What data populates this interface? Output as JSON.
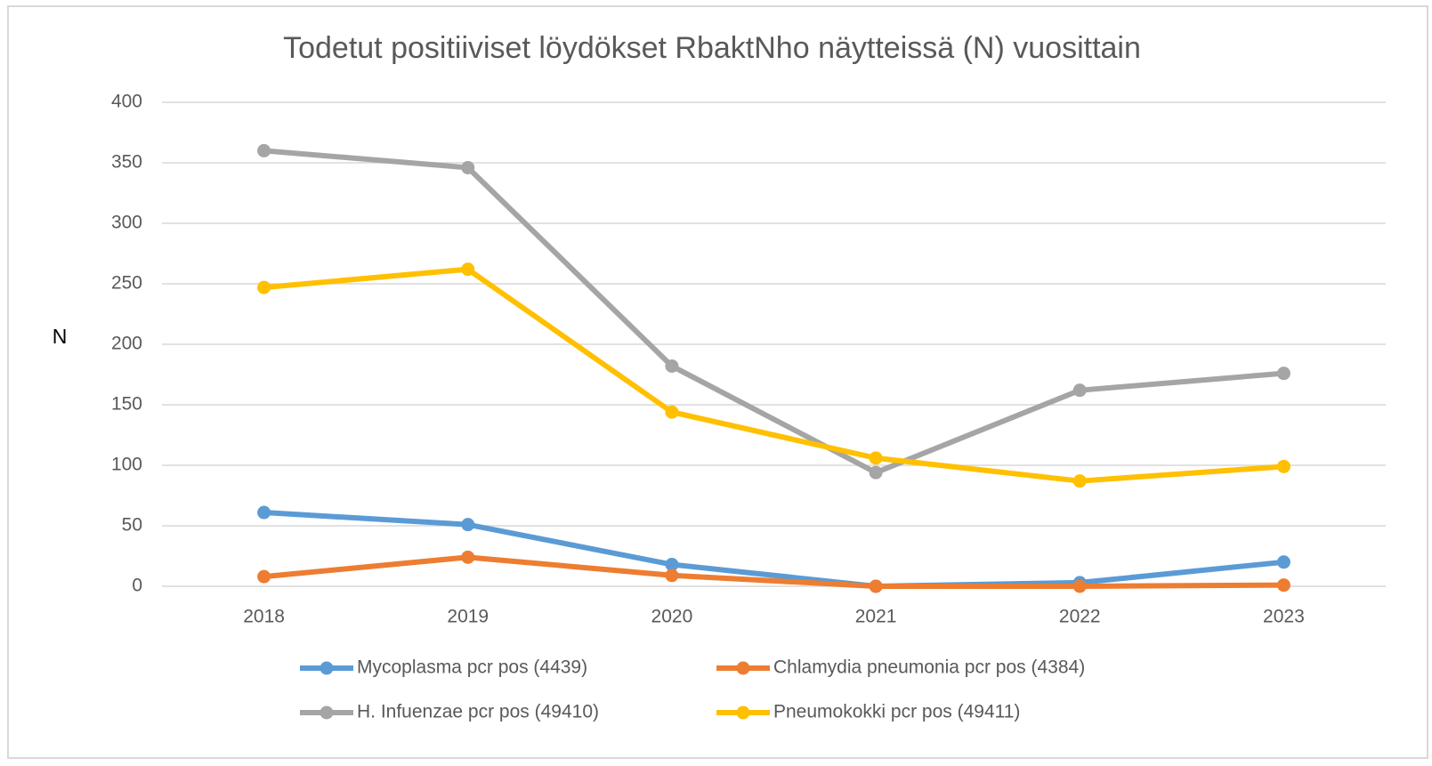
{
  "chart_data": {
    "type": "line",
    "title": "Todetut positiiviset löydökset RbaktNho näytteissä (N) vuosittain",
    "y_label": "N",
    "categories": [
      "2018",
      "2019",
      "2020",
      "2021",
      "2022",
      "2023"
    ],
    "series": [
      {
        "name": "Mycoplasma pcr pos (4439)",
        "color": "#5b9bd5",
        "values": [
          61,
          51,
          18,
          0,
          3,
          20
        ]
      },
      {
        "name": "Chlamydia pneumonia pcr pos (4384)",
        "color": "#ed7d31",
        "values": [
          8,
          24,
          9,
          0,
          0,
          1
        ]
      },
      {
        "name": "H. Infuenzae pcr pos (49410)",
        "color": "#a5a5a5",
        "values": [
          360,
          346,
          182,
          94,
          162,
          176
        ]
      },
      {
        "name": "Pneumokokki pcr pos (49411)",
        "color": "#ffc000",
        "values": [
          247,
          262,
          144,
          106,
          87,
          99
        ]
      }
    ],
    "ylim": [
      0,
      400
    ],
    "yticks": [
      0,
      50,
      100,
      150,
      200,
      250,
      300,
      350,
      400
    ],
    "grid": true,
    "legend": "bottom"
  }
}
